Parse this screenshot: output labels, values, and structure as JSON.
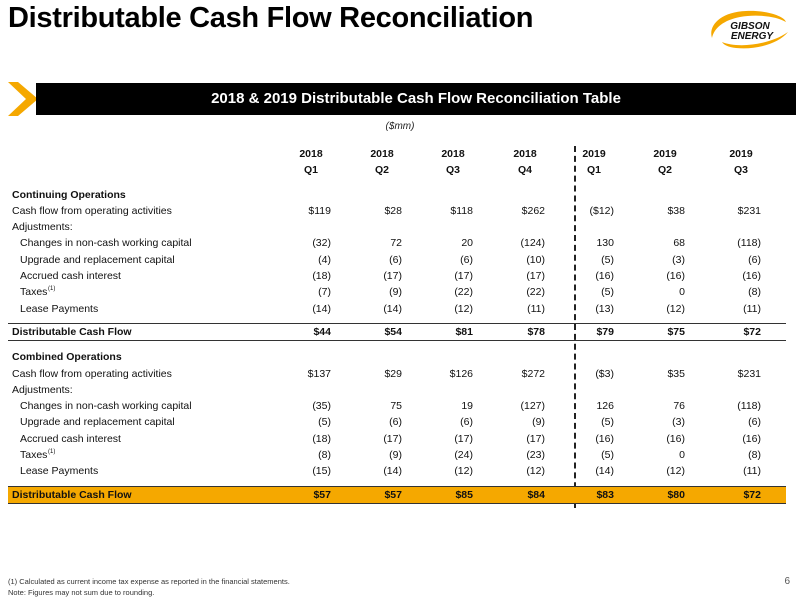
{
  "title": "Distributable Cash Flow Reconciliation",
  "logo_text": [
    "GIBSON",
    "ENERGY"
  ],
  "banner": "2018 & 2019 Distributable Cash Flow Reconciliation Table",
  "units": "($mm)",
  "columns": [
    {
      "year": "2018",
      "q": "Q1"
    },
    {
      "year": "2018",
      "q": "Q2"
    },
    {
      "year": "2018",
      "q": "Q3"
    },
    {
      "year": "2018",
      "q": "Q4"
    },
    {
      "year": "2019",
      "q": "Q1"
    },
    {
      "year": "2019",
      "q": "Q2"
    },
    {
      "year": "2019",
      "q": "Q3"
    }
  ],
  "continuing": {
    "heading": "Continuing Operations",
    "cfo": {
      "label": "Cash flow from operating activities",
      "values": [
        "$119",
        "$28",
        "$118",
        "$262",
        "($12)",
        "$38",
        "$231"
      ]
    },
    "adjustments": "Adjustments:",
    "rows": [
      {
        "label": "Changes in non-cash working capital",
        "values": [
          "(32)",
          "72",
          "20",
          "(124)",
          "130",
          "68",
          "(118)"
        ]
      },
      {
        "label": "Upgrade and replacement capital",
        "values": [
          "(4)",
          "(6)",
          "(6)",
          "(10)",
          "(5)",
          "(3)",
          "(6)"
        ]
      },
      {
        "label": "Accrued cash interest",
        "values": [
          "(18)",
          "(17)",
          "(17)",
          "(17)",
          "(16)",
          "(16)",
          "(16)"
        ]
      },
      {
        "label": "Taxes",
        "sup": "(1)",
        "values": [
          "(7)",
          "(9)",
          "(22)",
          "(22)",
          "(5)",
          "0",
          "(8)"
        ]
      },
      {
        "label": "Lease Payments",
        "values": [
          "(14)",
          "(14)",
          "(12)",
          "(11)",
          "(13)",
          "(12)",
          "(11)"
        ]
      }
    ],
    "total": {
      "label": "Distributable Cash Flow",
      "values": [
        "$44",
        "$54",
        "$81",
        "$78",
        "$79",
        "$75",
        "$72"
      ]
    }
  },
  "combined": {
    "heading": "Combined Operations",
    "cfo": {
      "label": "Cash flow from operating activities",
      "values": [
        "$137",
        "$29",
        "$126",
        "$272",
        "($3)",
        "$35",
        "$231"
      ]
    },
    "adjustments": "Adjustments:",
    "rows": [
      {
        "label": "Changes in non-cash working capital",
        "values": [
          "(35)",
          "75",
          "19",
          "(127)",
          "126",
          "76",
          "(118)"
        ]
      },
      {
        "label": "Upgrade and replacement capital",
        "values": [
          "(5)",
          "(6)",
          "(6)",
          "(9)",
          "(5)",
          "(3)",
          "(6)"
        ]
      },
      {
        "label": "Accrued cash interest",
        "values": [
          "(18)",
          "(17)",
          "(17)",
          "(17)",
          "(16)",
          "(16)",
          "(16)"
        ]
      },
      {
        "label": "Taxes",
        "sup": "(1)",
        "values": [
          "(8)",
          "(9)",
          "(24)",
          "(23)",
          "(5)",
          "0",
          "(8)"
        ]
      },
      {
        "label": "Lease Payments",
        "values": [
          "(15)",
          "(14)",
          "(12)",
          "(12)",
          "(14)",
          "(12)",
          "(11)"
        ]
      }
    ],
    "total": {
      "label": "Distributable Cash Flow",
      "values": [
        "$57",
        "$57",
        "$85",
        "$84",
        "$83",
        "$80",
        "$72"
      ]
    }
  },
  "footnotes": [
    "(1) Calculated as current income tax expense as reported in the financial statements.",
    "Note: Figures may not sum due to rounding."
  ],
  "page_number": "6",
  "colors": {
    "accent": "#f5a800",
    "banner_bg": "#000000"
  }
}
